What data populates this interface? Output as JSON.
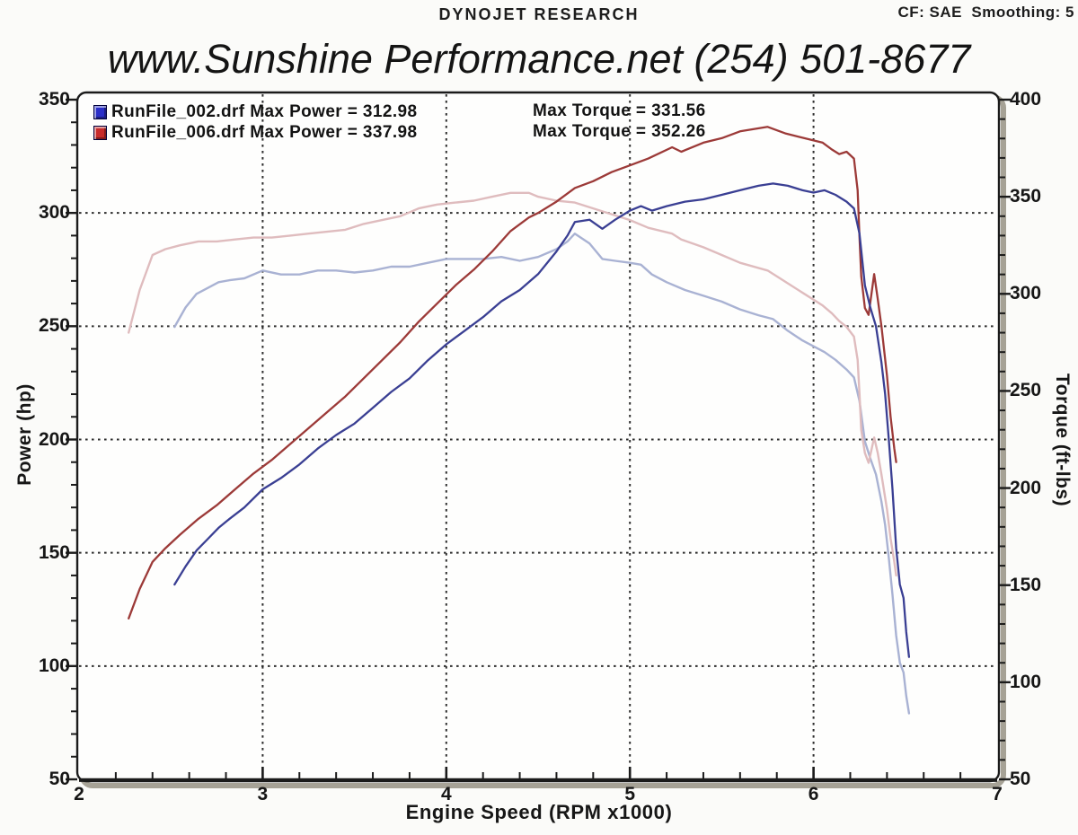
{
  "header": {
    "brand": "DYNOJET RESEARCH",
    "cf": "CF: SAE  Smoothing: 5"
  },
  "title": "www.Sunshine Performance.net  (254) 501-8677",
  "legend": [
    {
      "file": "RunFile_002.drf",
      "power_text": " Max Power = 312.98",
      "torque_text": "Max Torque = 331.56",
      "swatch_color": "#2b2fc8",
      "max_power": 312.98,
      "max_torque": 331.56
    },
    {
      "file": "RunFile_006.drf",
      "power_text": " Max Power = 337.98",
      "torque_text": "Max Torque = 352.26",
      "swatch_color": "#c82b2b",
      "max_power": 337.98,
      "max_torque": 352.26
    }
  ],
  "axes": {
    "left_label": "Power (hp)",
    "right_label": "Torque (ft-lbs)",
    "bottom_label": "Engine Speed (RPM x1000)",
    "left_ticks": [
      350,
      300,
      250,
      200,
      150,
      100,
      50
    ],
    "right_ticks": [
      400,
      350,
      300,
      250,
      200,
      150,
      100,
      50
    ],
    "x_ticks": [
      2,
      3,
      4,
      5,
      6,
      7
    ]
  },
  "chart_data": {
    "type": "line",
    "title": "www.Sunshine Performance.net (254) 501-8677",
    "xlabel": "Engine Speed (RPM x1000)",
    "x_range": [
      2,
      7
    ],
    "x_grid_at": [
      3,
      4,
      5,
      6
    ],
    "x_minor_step": 0.2,
    "y_left": {
      "label": "Power (hp)",
      "range": [
        50,
        350
      ],
      "major_step": 50,
      "minor_step": 10,
      "grid_at": [
        300,
        250,
        200,
        150,
        100
      ]
    },
    "y_right": {
      "label": "Torque (ft-lbs)",
      "range": [
        50,
        400
      ],
      "major_step": 50,
      "minor_step": 10
    },
    "grid_style": "dashed",
    "legend_position": "top-left",
    "series": [
      {
        "name": "RunFile_002.drf Torque",
        "axis": "torque",
        "color": "#a9b2d3",
        "width": 2.4,
        "points": [
          [
            2.52,
            283
          ],
          [
            2.58,
            293
          ],
          [
            2.64,
            300
          ],
          [
            2.7,
            303
          ],
          [
            2.76,
            306
          ],
          [
            2.82,
            307
          ],
          [
            2.9,
            308
          ],
          [
            3.0,
            312
          ],
          [
            3.1,
            310
          ],
          [
            3.2,
            310
          ],
          [
            3.3,
            312
          ],
          [
            3.4,
            312
          ],
          [
            3.5,
            311
          ],
          [
            3.6,
            312
          ],
          [
            3.7,
            314
          ],
          [
            3.8,
            314
          ],
          [
            3.9,
            316
          ],
          [
            4.0,
            318
          ],
          [
            4.1,
            318
          ],
          [
            4.2,
            318
          ],
          [
            4.3,
            319
          ],
          [
            4.4,
            317
          ],
          [
            4.5,
            319
          ],
          [
            4.6,
            323
          ],
          [
            4.66,
            327
          ],
          [
            4.7,
            331
          ],
          [
            4.78,
            326
          ],
          [
            4.85,
            318
          ],
          [
            4.92,
            317
          ],
          [
            5.0,
            316
          ],
          [
            5.06,
            315
          ],
          [
            5.12,
            310
          ],
          [
            5.2,
            306
          ],
          [
            5.3,
            302
          ],
          [
            5.4,
            299
          ],
          [
            5.5,
            296
          ],
          [
            5.6,
            292
          ],
          [
            5.7,
            289
          ],
          [
            5.78,
            287
          ],
          [
            5.86,
            281
          ],
          [
            5.94,
            276
          ],
          [
            6.0,
            273
          ],
          [
            6.06,
            270
          ],
          [
            6.12,
            266
          ],
          [
            6.18,
            261
          ],
          [
            6.22,
            257
          ],
          [
            6.25,
            245
          ],
          [
            6.28,
            224
          ],
          [
            6.31,
            215
          ],
          [
            6.34,
            207
          ],
          [
            6.37,
            193
          ],
          [
            6.39,
            181
          ],
          [
            6.41,
            164
          ],
          [
            6.43,
            145
          ],
          [
            6.45,
            124
          ],
          [
            6.47,
            110
          ],
          [
            6.49,
            105
          ],
          [
            6.505,
            93
          ],
          [
            6.52,
            84
          ]
        ]
      },
      {
        "name": "RunFile_006.drf Torque",
        "axis": "torque",
        "color": "#dfbcbe",
        "width": 2.4,
        "points": [
          [
            2.27,
            280
          ],
          [
            2.33,
            302
          ],
          [
            2.4,
            320
          ],
          [
            2.47,
            323
          ],
          [
            2.55,
            325
          ],
          [
            2.65,
            327
          ],
          [
            2.75,
            327
          ],
          [
            2.85,
            328
          ],
          [
            2.95,
            329
          ],
          [
            3.05,
            329
          ],
          [
            3.15,
            330
          ],
          [
            3.25,
            331
          ],
          [
            3.35,
            332
          ],
          [
            3.45,
            333
          ],
          [
            3.55,
            336
          ],
          [
            3.65,
            338
          ],
          [
            3.75,
            340
          ],
          [
            3.85,
            344
          ],
          [
            3.95,
            346
          ],
          [
            4.05,
            347
          ],
          [
            4.15,
            348
          ],
          [
            4.25,
            350
          ],
          [
            4.35,
            352
          ],
          [
            4.45,
            352
          ],
          [
            4.5,
            350
          ],
          [
            4.6,
            348
          ],
          [
            4.7,
            347
          ],
          [
            4.8,
            344
          ],
          [
            4.9,
            341
          ],
          [
            5.0,
            338
          ],
          [
            5.1,
            334
          ],
          [
            5.23,
            331
          ],
          [
            5.28,
            328
          ],
          [
            5.4,
            324
          ],
          [
            5.5,
            320
          ],
          [
            5.6,
            316
          ],
          [
            5.75,
            312
          ],
          [
            5.85,
            306
          ],
          [
            5.95,
            300
          ],
          [
            6.05,
            294
          ],
          [
            6.1,
            290
          ],
          [
            6.14,
            286
          ],
          [
            6.18,
            283
          ],
          [
            6.22,
            278
          ],
          [
            6.24,
            266
          ],
          [
            6.25,
            249
          ],
          [
            6.26,
            230
          ],
          [
            6.28,
            218
          ],
          [
            6.3,
            213
          ],
          [
            6.33,
            226
          ],
          [
            6.35,
            218
          ],
          [
            6.37,
            207
          ],
          [
            6.4,
            189
          ],
          [
            6.42,
            174
          ],
          [
            6.44,
            162
          ],
          [
            6.45,
            155
          ]
        ]
      },
      {
        "name": "RunFile_006.drf Power",
        "axis": "power",
        "color": "#9c3a38",
        "width": 2.3,
        "points": [
          [
            2.27,
            121
          ],
          [
            2.33,
            134
          ],
          [
            2.4,
            146
          ],
          [
            2.47,
            152
          ],
          [
            2.55,
            158
          ],
          [
            2.65,
            165
          ],
          [
            2.75,
            171
          ],
          [
            2.85,
            178
          ],
          [
            2.95,
            185
          ],
          [
            3.05,
            191
          ],
          [
            3.15,
            198
          ],
          [
            3.25,
            205
          ],
          [
            3.35,
            212
          ],
          [
            3.45,
            219
          ],
          [
            3.55,
            227
          ],
          [
            3.65,
            235
          ],
          [
            3.75,
            243
          ],
          [
            3.85,
            252
          ],
          [
            3.95,
            260
          ],
          [
            4.05,
            268
          ],
          [
            4.15,
            275
          ],
          [
            4.25,
            283
          ],
          [
            4.35,
            292
          ],
          [
            4.45,
            298
          ],
          [
            4.5,
            300
          ],
          [
            4.6,
            305
          ],
          [
            4.7,
            311
          ],
          [
            4.8,
            314
          ],
          [
            4.9,
            318
          ],
          [
            5.0,
            321
          ],
          [
            5.1,
            324
          ],
          [
            5.23,
            329
          ],
          [
            5.28,
            327
          ],
          [
            5.4,
            331
          ],
          [
            5.5,
            333
          ],
          [
            5.6,
            336
          ],
          [
            5.75,
            338
          ],
          [
            5.85,
            335
          ],
          [
            5.95,
            333
          ],
          [
            6.05,
            331
          ],
          [
            6.1,
            328
          ],
          [
            6.14,
            326
          ],
          [
            6.18,
            327
          ],
          [
            6.22,
            324
          ],
          [
            6.24,
            310
          ],
          [
            6.25,
            290
          ],
          [
            6.26,
            272
          ],
          [
            6.28,
            258
          ],
          [
            6.3,
            255
          ],
          [
            6.33,
            273
          ],
          [
            6.35,
            262
          ],
          [
            6.37,
            250
          ],
          [
            6.4,
            228
          ],
          [
            6.42,
            210
          ],
          [
            6.44,
            196
          ],
          [
            6.45,
            190
          ]
        ]
      },
      {
        "name": "RunFile_002.drf Power",
        "axis": "power",
        "color": "#3a3f93",
        "width": 2.3,
        "points": [
          [
            2.52,
            136
          ],
          [
            2.58,
            144
          ],
          [
            2.64,
            151
          ],
          [
            2.7,
            156
          ],
          [
            2.76,
            161
          ],
          [
            2.82,
            165
          ],
          [
            2.9,
            170
          ],
          [
            3.0,
            178
          ],
          [
            3.1,
            183
          ],
          [
            3.2,
            189
          ],
          [
            3.3,
            196
          ],
          [
            3.4,
            202
          ],
          [
            3.5,
            207
          ],
          [
            3.6,
            214
          ],
          [
            3.7,
            221
          ],
          [
            3.8,
            227
          ],
          [
            3.9,
            235
          ],
          [
            4.0,
            242
          ],
          [
            4.1,
            248
          ],
          [
            4.2,
            254
          ],
          [
            4.3,
            261
          ],
          [
            4.4,
            266
          ],
          [
            4.5,
            273
          ],
          [
            4.6,
            283
          ],
          [
            4.66,
            290
          ],
          [
            4.7,
            296
          ],
          [
            4.78,
            297
          ],
          [
            4.85,
            293
          ],
          [
            4.92,
            297
          ],
          [
            5.0,
            301
          ],
          [
            5.06,
            303
          ],
          [
            5.12,
            301
          ],
          [
            5.2,
            303
          ],
          [
            5.3,
            305
          ],
          [
            5.4,
            306
          ],
          [
            5.5,
            308
          ],
          [
            5.6,
            310
          ],
          [
            5.7,
            312
          ],
          [
            5.78,
            313
          ],
          [
            5.86,
            312
          ],
          [
            5.94,
            310
          ],
          [
            6.0,
            309
          ],
          [
            6.06,
            310
          ],
          [
            6.12,
            308
          ],
          [
            6.18,
            305
          ],
          [
            6.22,
            302
          ],
          [
            6.25,
            291
          ],
          [
            6.28,
            268
          ],
          [
            6.31,
            258
          ],
          [
            6.34,
            250
          ],
          [
            6.37,
            234
          ],
          [
            6.39,
            220
          ],
          [
            6.41,
            200
          ],
          [
            6.43,
            178
          ],
          [
            6.45,
            152
          ],
          [
            6.47,
            136
          ],
          [
            6.49,
            130
          ],
          [
            6.505,
            115
          ],
          [
            6.52,
            104
          ]
        ]
      }
    ]
  }
}
